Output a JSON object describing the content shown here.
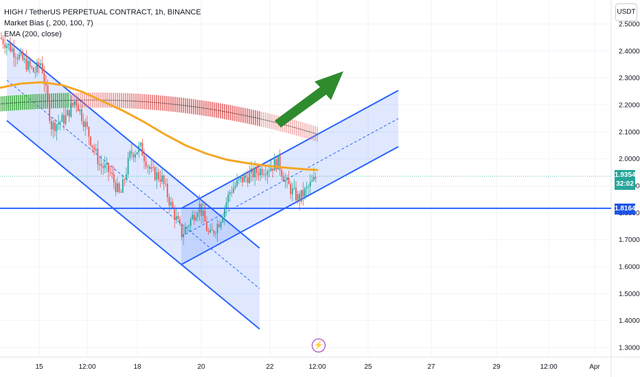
{
  "legend": {
    "title": "HIGH / TetherUS PERPETUAL CONTRACT, 1h, BINANCE",
    "indicator1": "Market Bias (, 200, 100, 7)",
    "indicator2": "EMA (200, close)"
  },
  "currency": "USDT",
  "flash_icon": "⚡",
  "current_price": {
    "value": "1.9354",
    "countdown": "32:02",
    "color": "#26a69a"
  },
  "level_price": {
    "value": "1.8164",
    "color": "#1e53e5"
  },
  "colors": {
    "up": "#26a69a",
    "down": "#ef5350",
    "ema": "#f5a623",
    "bias_red": "#e57373",
    "bias_green": "#4caf50",
    "channel": "#2962ff",
    "arrow": "#2e8b2e"
  },
  "chart_data": {
    "type": "candlestick",
    "y_ticks": [
      1.3,
      1.4,
      1.5,
      1.6,
      1.7,
      1.8,
      1.9,
      2.0,
      2.1,
      2.2,
      2.3,
      2.4,
      2.5
    ],
    "y_tick_labels": [
      "1.3000",
      "1.4000",
      "1.5000",
      "1.6000",
      "1.7000",
      "1.8000",
      "1.9000",
      "2.0000",
      "2.1000",
      "2.2000",
      "2.3000",
      "2.4000",
      "2.5000"
    ],
    "ylim": [
      1.27,
      2.52
    ],
    "x_tick_labels": [
      "15",
      "12:00",
      "18",
      "20",
      "22",
      "12:00",
      "25",
      "27",
      "29",
      "12:00",
      "Apr"
    ],
    "horizontal_level": 1.8164,
    "last_price": 1.9354
  }
}
